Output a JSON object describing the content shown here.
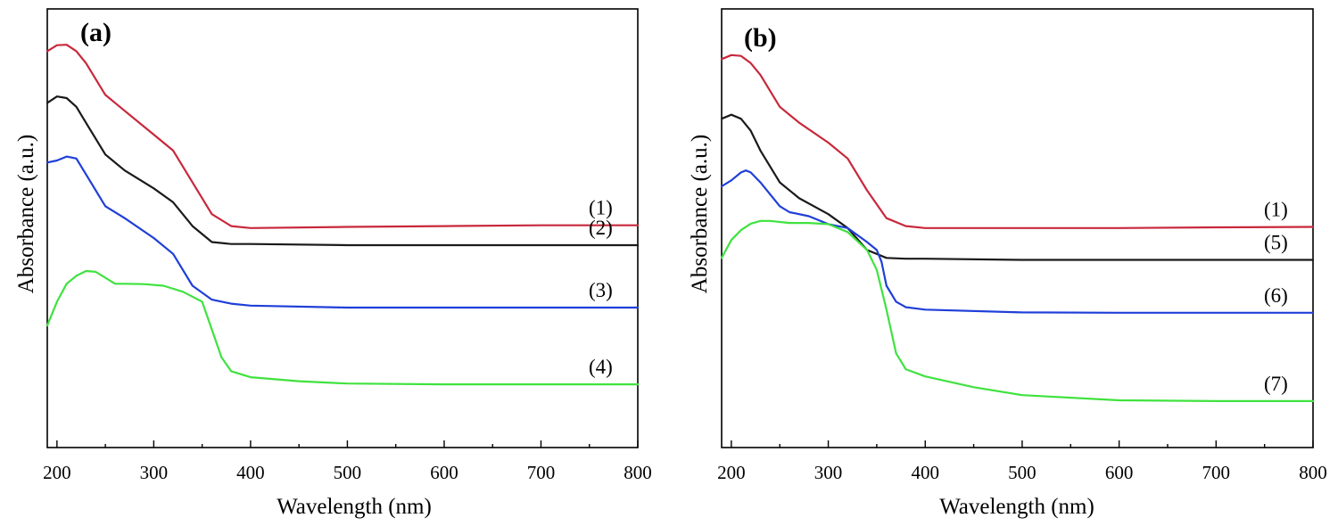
{
  "chart_data": [
    {
      "type": "line",
      "panel": "(a)",
      "xlabel": "Wavelength (nm)",
      "ylabel": "Absorbance (a.u.)",
      "xlim": [
        190,
        800
      ],
      "ylim": [
        0,
        100
      ],
      "xticks": [
        200,
        300,
        400,
        500,
        600,
        700,
        800
      ],
      "xtick_labels": [
        "200",
        "300",
        "400",
        "500",
        "600",
        "700",
        "800"
      ],
      "series": [
        {
          "name": "(1)",
          "color": "#c8283c",
          "x": [
            190,
            200,
            210,
            220,
            230,
            250,
            270,
            300,
            320,
            340,
            360,
            380,
            400,
            500,
            600,
            700,
            800
          ],
          "y": [
            97,
            98.5,
            98.6,
            97,
            94,
            86,
            82,
            76,
            72,
            64,
            56,
            53,
            52.5,
            52.8,
            53,
            53.2,
            53.2
          ]
        },
        {
          "name": "(2)",
          "color": "#1a1a1a",
          "x": [
            190,
            200,
            210,
            220,
            230,
            250,
            270,
            300,
            320,
            340,
            360,
            380,
            400,
            500,
            600,
            700,
            800
          ],
          "y": [
            84,
            85.6,
            85.2,
            83,
            79,
            71,
            67,
            62.5,
            59,
            53,
            49,
            48.5,
            48.5,
            48.2,
            48.2,
            48.2,
            48.2
          ]
        },
        {
          "name": "(3)",
          "color": "#1f3fd8",
          "x": [
            190,
            200,
            210,
            220,
            230,
            250,
            270,
            300,
            320,
            340,
            360,
            380,
            400,
            500,
            600,
            700,
            800
          ],
          "y": [
            69,
            69.5,
            70.5,
            70,
            66,
            58,
            55,
            50,
            46,
            38,
            34.5,
            33.5,
            33,
            32.5,
            32.5,
            32.5,
            32.5
          ]
        },
        {
          "name": "(4)",
          "color": "#3fe23f",
          "x": [
            190,
            200,
            210,
            220,
            230,
            240,
            250,
            260,
            270,
            290,
            310,
            330,
            350,
            360,
            370,
            380,
            400,
            450,
            500,
            600,
            700,
            800
          ],
          "y": [
            28,
            34,
            38.5,
            40.5,
            41.7,
            41.5,
            40,
            38.5,
            38.5,
            38.4,
            38,
            36.5,
            34,
            27,
            20,
            16.5,
            15,
            14,
            13.4,
            13.2,
            13.2,
            13.2
          ]
        }
      ]
    },
    {
      "type": "line",
      "panel": "(b)",
      "xlabel": "Wavelength (nm)",
      "ylabel": "Absorbance (a.u.)",
      "xlim": [
        190,
        800
      ],
      "ylim": [
        0,
        100
      ],
      "xticks": [
        200,
        300,
        400,
        500,
        600,
        700,
        800
      ],
      "xtick_labels": [
        "200",
        "300",
        "400",
        "500",
        "600",
        "700",
        "800"
      ],
      "series": [
        {
          "name": "(1)",
          "color": "#c8283c",
          "x": [
            190,
            200,
            210,
            220,
            230,
            250,
            270,
            300,
            320,
            340,
            360,
            380,
            400,
            500,
            600,
            700,
            800
          ],
          "y": [
            95,
            96,
            95.8,
            94,
            91,
            83,
            79,
            74,
            70,
            62,
            55,
            53,
            52.5,
            52.5,
            52.5,
            52.7,
            52.8
          ]
        },
        {
          "name": "(5)",
          "color": "#1a1a1a",
          "x": [
            190,
            200,
            210,
            220,
            230,
            250,
            270,
            300,
            320,
            340,
            360,
            380,
            400,
            500,
            600,
            700,
            800
          ],
          "y": [
            80,
            81,
            80,
            77,
            72,
            64,
            60,
            56,
            52.5,
            47,
            45,
            44.8,
            44.8,
            44.5,
            44.5,
            44.5,
            44.5
          ]
        },
        {
          "name": "(6)",
          "color": "#1f3fd8",
          "x": [
            190,
            200,
            210,
            215,
            220,
            230,
            250,
            260,
            280,
            300,
            320,
            340,
            350,
            355,
            360,
            370,
            380,
            400,
            500,
            600,
            700,
            800
          ],
          "y": [
            63,
            64.5,
            66.5,
            67,
            66.5,
            64,
            58,
            56.5,
            55.5,
            53.5,
            52.5,
            49,
            47,
            44,
            38,
            34,
            32.6,
            32,
            31.3,
            31.2,
            31.2,
            31.2
          ]
        },
        {
          "name": "(7)",
          "color": "#3fe23f",
          "x": [
            190,
            200,
            210,
            220,
            230,
            240,
            260,
            280,
            300,
            320,
            340,
            350,
            360,
            370,
            380,
            400,
            450,
            500,
            600,
            700,
            800
          ],
          "y": [
            45,
            49.5,
            52,
            53.6,
            54.3,
            54.3,
            53.8,
            53.8,
            53.5,
            51.5,
            47,
            42,
            32,
            21,
            17,
            15.2,
            12.5,
            10.5,
            9.2,
            9.0,
            9.0
          ]
        }
      ]
    }
  ]
}
